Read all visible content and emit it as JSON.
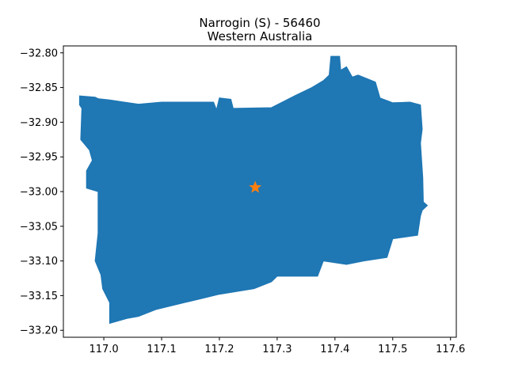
{
  "chart_data": {
    "type": "map",
    "title": "Narrogin (S) - 56460",
    "subtitle": "Western Australia",
    "xlim": [
      116.93,
      117.61
    ],
    "ylim": [
      -33.21,
      -32.79
    ],
    "x_ticks": [
      117.0,
      117.1,
      117.2,
      117.3,
      117.4,
      117.5,
      117.6
    ],
    "x_tick_labels": [
      "117.0",
      "117.1",
      "117.2",
      "117.3",
      "117.4",
      "117.5",
      "117.6"
    ],
    "y_ticks": [
      -32.8,
      -32.85,
      -32.9,
      -32.95,
      -33.0,
      -33.05,
      -33.1,
      -33.15,
      -33.2
    ],
    "y_tick_labels": [
      "−32.80",
      "−32.85",
      "−32.90",
      "−32.95",
      "−33.00",
      "−33.05",
      "−33.10",
      "−33.15",
      "−33.20"
    ],
    "region": {
      "fill": "#1f77b4",
      "boundary": [
        [
          116.958,
          -32.862
        ],
        [
          116.985,
          -32.864
        ],
        [
          116.99,
          -32.866
        ],
        [
          117.01,
          -32.868
        ],
        [
          117.06,
          -32.874
        ],
        [
          117.1,
          -32.871
        ],
        [
          117.19,
          -32.871
        ],
        [
          117.195,
          -32.882
        ],
        [
          117.2,
          -32.865
        ],
        [
          117.22,
          -32.867
        ],
        [
          117.224,
          -32.88
        ],
        [
          117.29,
          -32.879
        ],
        [
          117.33,
          -32.862
        ],
        [
          117.36,
          -32.85
        ],
        [
          117.38,
          -32.84
        ],
        [
          117.39,
          -32.832
        ],
        [
          117.393,
          -32.805
        ],
        [
          117.408,
          -32.805
        ],
        [
          117.41,
          -32.825
        ],
        [
          117.42,
          -32.82
        ],
        [
          117.43,
          -32.835
        ],
        [
          117.44,
          -32.832
        ],
        [
          117.47,
          -32.842
        ],
        [
          117.478,
          -32.865
        ],
        [
          117.5,
          -32.872
        ],
        [
          117.53,
          -32.871
        ],
        [
          117.548,
          -32.875
        ],
        [
          117.551,
          -32.91
        ],
        [
          117.548,
          -32.93
        ],
        [
          117.552,
          -32.98
        ],
        [
          117.553,
          -33.015
        ],
        [
          117.56,
          -33.02
        ],
        [
          117.551,
          -33.027
        ],
        [
          117.548,
          -33.035
        ],
        [
          117.543,
          -33.063
        ],
        [
          117.5,
          -33.068
        ],
        [
          117.49,
          -33.095
        ],
        [
          117.45,
          -33.1
        ],
        [
          117.42,
          -33.105
        ],
        [
          117.38,
          -33.1
        ],
        [
          117.37,
          -33.122
        ],
        [
          117.3,
          -33.122
        ],
        [
          117.29,
          -33.13
        ],
        [
          117.26,
          -33.14
        ],
        [
          117.2,
          -33.148
        ],
        [
          117.14,
          -33.16
        ],
        [
          117.09,
          -33.17
        ],
        [
          117.06,
          -33.18
        ],
        [
          117.04,
          -33.183
        ],
        [
          117.01,
          -33.19
        ],
        [
          117.01,
          -33.16
        ],
        [
          116.998,
          -33.14
        ],
        [
          116.995,
          -33.12
        ],
        [
          116.985,
          -33.1
        ],
        [
          116.99,
          -33.06
        ],
        [
          116.99,
          -33.0
        ],
        [
          116.97,
          -32.995
        ],
        [
          116.97,
          -32.97
        ],
        [
          116.98,
          -32.955
        ],
        [
          116.975,
          -32.94
        ],
        [
          116.96,
          -32.925
        ],
        [
          116.962,
          -32.88
        ],
        [
          116.958,
          -32.875
        ]
      ]
    },
    "marker": {
      "x": 117.262,
      "y": -32.994,
      "symbol": "star",
      "color": "#ff7f0e"
    }
  }
}
